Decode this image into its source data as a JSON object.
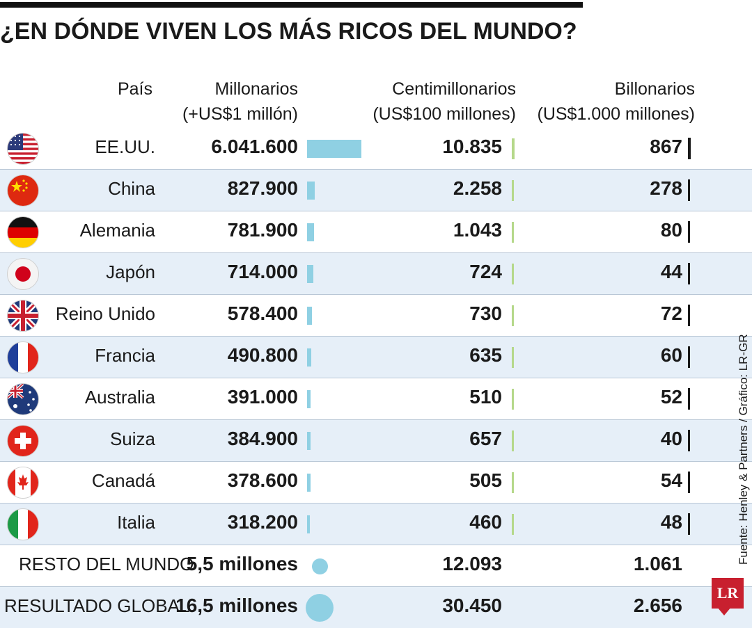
{
  "title": "¿EN DÓNDE VIVEN LOS MÁS RICOS DEL MUNDO?",
  "headers": {
    "country": "País",
    "millionaires": [
      "Millonarios",
      "(+US$1 millón)"
    ],
    "centimillionaires": [
      "Centimillonarios",
      "(US$100 millones)"
    ],
    "billionaires": [
      "Billonarios",
      "(US$1.000 millones)"
    ]
  },
  "rows": [
    {
      "flag": "usa-flag-icon",
      "country": "EE.UU.",
      "millionaires_label": "6.041.600",
      "centi_label": "10.835",
      "bill_label": "867"
    },
    {
      "flag": "china-flag-icon",
      "country": "China",
      "millionaires_label": "827.900",
      "centi_label": "2.258",
      "bill_label": "278"
    },
    {
      "flag": "germany-flag-icon",
      "country": "Alemania",
      "millionaires_label": "781.900",
      "centi_label": "1.043",
      "bill_label": "80"
    },
    {
      "flag": "japan-flag-icon",
      "country": "Japón",
      "millionaires_label": "714.000",
      "centi_label": "724",
      "bill_label": "44"
    },
    {
      "flag": "uk-flag-icon",
      "country": "Reino Unido",
      "millionaires_label": "578.400",
      "centi_label": "730",
      "bill_label": "72"
    },
    {
      "flag": "france-flag-icon",
      "country": "Francia",
      "millionaires_label": "490.800",
      "centi_label": "635",
      "bill_label": "60"
    },
    {
      "flag": "australia-flag-icon",
      "country": "Australia",
      "millionaires_label": "391.000",
      "centi_label": "510",
      "bill_label": "52"
    },
    {
      "flag": "switzerland-flag-icon",
      "country": "Suiza",
      "millionaires_label": "384.900",
      "centi_label": "657",
      "bill_label": "40"
    },
    {
      "flag": "canada-flag-icon",
      "country": "Canadá",
      "millionaires_label": "378.600",
      "centi_label": "505",
      "bill_label": "54"
    },
    {
      "flag": "italy-flag-icon",
      "country": "Italia",
      "millionaires_label": "318.200",
      "centi_label": "460",
      "bill_label": "48"
    }
  ],
  "footer": [
    {
      "label": "RESTO DEL MUNDO",
      "millionaires_label": "5,5 millones",
      "centi_label": "12.093",
      "bill_label": "1.061"
    },
    {
      "label": "RESULTADO GLOBAL",
      "millionaires_label": "16,5 millones",
      "centi_label": "30.450",
      "bill_label": "2.656"
    }
  ],
  "source": "Fuente: Henley & Partners / Gráfico: LR-GR",
  "logo": "LR",
  "colors": {
    "millionaires_bar": "#8fd0e3",
    "centimillionaires_bar": "#b5d88a",
    "billionaires_bar": "#1a1a1a",
    "row_shade": "#e6eff8",
    "logo_red": "#c8202f"
  },
  "chart_data": {
    "type": "table",
    "title": "¿EN DÓNDE VIVEN LOS MÁS RICOS DEL MUNDO?",
    "columns": [
      "País",
      "Millonarios (+US$1 millón)",
      "Centimillonarios (US$100 millones)",
      "Billonarios (US$1.000 millones)"
    ],
    "categories": [
      "EE.UU.",
      "China",
      "Alemania",
      "Japón",
      "Reino Unido",
      "Francia",
      "Australia",
      "Suiza",
      "Canadá",
      "Italia"
    ],
    "series": [
      {
        "name": "Millonarios (+US$1 millón)",
        "values": [
          6041600,
          827900,
          781900,
          714000,
          578400,
          490800,
          391000,
          384900,
          378600,
          318200
        ]
      },
      {
        "name": "Centimillonarios (US$100 millones)",
        "values": [
          10835,
          2258,
          1043,
          724,
          730,
          635,
          510,
          657,
          505,
          460
        ]
      },
      {
        "name": "Billonarios (US$1.000 millones)",
        "values": [
          867,
          278,
          80,
          44,
          72,
          60,
          52,
          40,
          54,
          48
        ]
      }
    ],
    "totals": [
      {
        "label": "RESTO DEL MUNDO",
        "millionaires": 5500000,
        "centimillionaires": 12093,
        "billionaires": 1061
      },
      {
        "label": "RESULTADO GLOBAL",
        "millionaires": 16500000,
        "centimillionaires": 30450,
        "billionaires": 2656
      }
    ]
  }
}
